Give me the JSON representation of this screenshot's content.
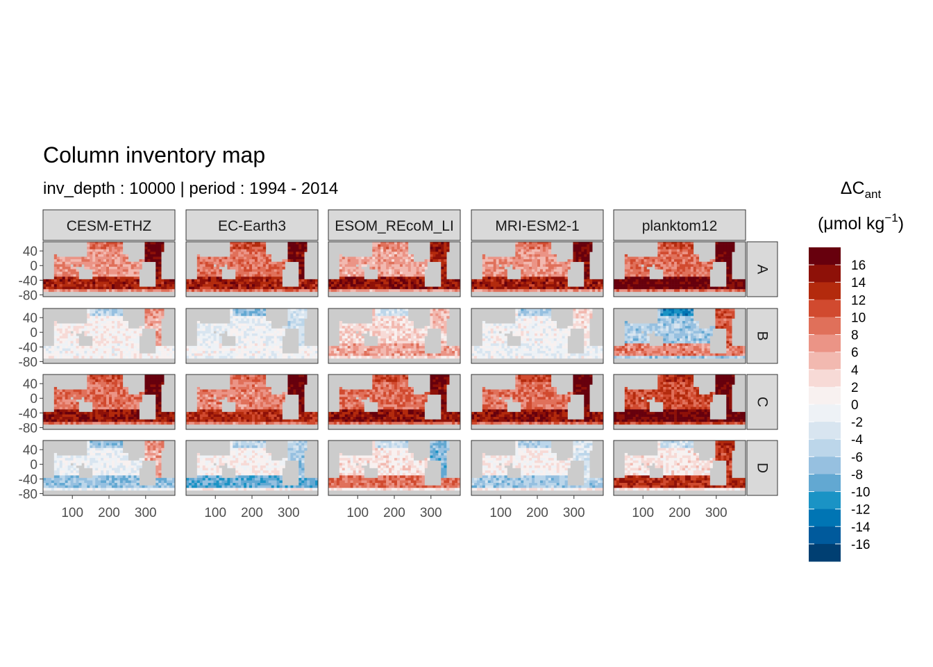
{
  "title": "Column inventory map",
  "subtitle": "inv_depth : 10000 | period : 1994 - 2014",
  "legend": {
    "title_main": "ΔC",
    "title_sub": "ant",
    "unit_prefix": "(μmol kg",
    "unit_exp": "−1",
    "unit_suffix": ")",
    "colors": [
      "#67000d",
      "#8e1108",
      "#b32a0d",
      "#d14a2f",
      "#e0705a",
      "#eb9486",
      "#f2b9b0",
      "#f7dad6",
      "#f8f1f0",
      "#eef2f6",
      "#d8e5f0",
      "#bcd6ea",
      "#96c0e0",
      "#62a8d2",
      "#1a93c5",
      "#0075b4",
      "#005a9c",
      "#003f72"
    ],
    "labels": [
      "16",
      "14",
      "12",
      "10",
      "8",
      "6",
      "4",
      "2",
      "0",
      "-2",
      "-4",
      "-6",
      "-8",
      "-10",
      "-12",
      "-14",
      "-16"
    ]
  },
  "chart_data": {
    "type": "heatmap",
    "title": "Column inventory map",
    "subtitle": "inv_depth : 10000 | period : 1994 - 2014",
    "facet_columns": [
      "CESM-ETHZ",
      "EC-Earth3",
      "FESOM_REcoM_LR",
      "MRI-ESM2-1",
      "planktom12"
    ],
    "facet_columns_display": [
      "CESM-ETHZ",
      "EC-Earth3",
      "ESOM_REcoM_LI",
      "MRI-ESM2-1",
      "planktom12"
    ],
    "facet_rows": [
      "A",
      "B",
      "C",
      "D"
    ],
    "x_ticks": [
      100,
      200,
      300
    ],
    "y_ticks": [
      40,
      0,
      -40,
      -80
    ],
    "x_ticks_labels": [
      "100",
      "200",
      "300"
    ],
    "y_ticks_labels": [
      "40",
      "0",
      "-40",
      "-80"
    ],
    "xlim": [
      20,
      380
    ],
    "ylim": [
      -85,
      65
    ],
    "color_scale": {
      "breaks": [
        16,
        14,
        12,
        10,
        8,
        6,
        4,
        2,
        0,
        -2,
        -4,
        -6,
        -8,
        -10,
        -12,
        -14,
        -16
      ],
      "range": [
        -18,
        18
      ]
    },
    "panel_pattern": {
      "A": {
        "base": [
          7,
          9,
          6,
          7,
          9
        ],
        "southern_ocean": [
          14,
          14,
          15,
          14,
          17
        ],
        "atlantic": [
          16,
          16,
          14,
          16,
          17
        ]
      },
      "B": {
        "base": [
          1,
          -1,
          3,
          0,
          -6
        ],
        "southern_ocean": [
          0,
          0,
          6,
          -1,
          8
        ],
        "atlantic": [
          6,
          -4,
          4,
          2,
          10
        ]
      },
      "C": {
        "base": [
          9,
          8,
          9,
          9,
          11
        ],
        "southern_ocean": [
          15,
          13,
          15,
          15,
          17
        ],
        "atlantic": [
          17,
          17,
          16,
          17,
          17
        ]
      },
      "D": {
        "base": [
          -1,
          1,
          2,
          1,
          2
        ],
        "southern_ocean": [
          -7,
          -9,
          9,
          -6,
          13
        ],
        "atlantic": [
          6,
          -6,
          -8,
          -3,
          12
        ]
      }
    }
  }
}
